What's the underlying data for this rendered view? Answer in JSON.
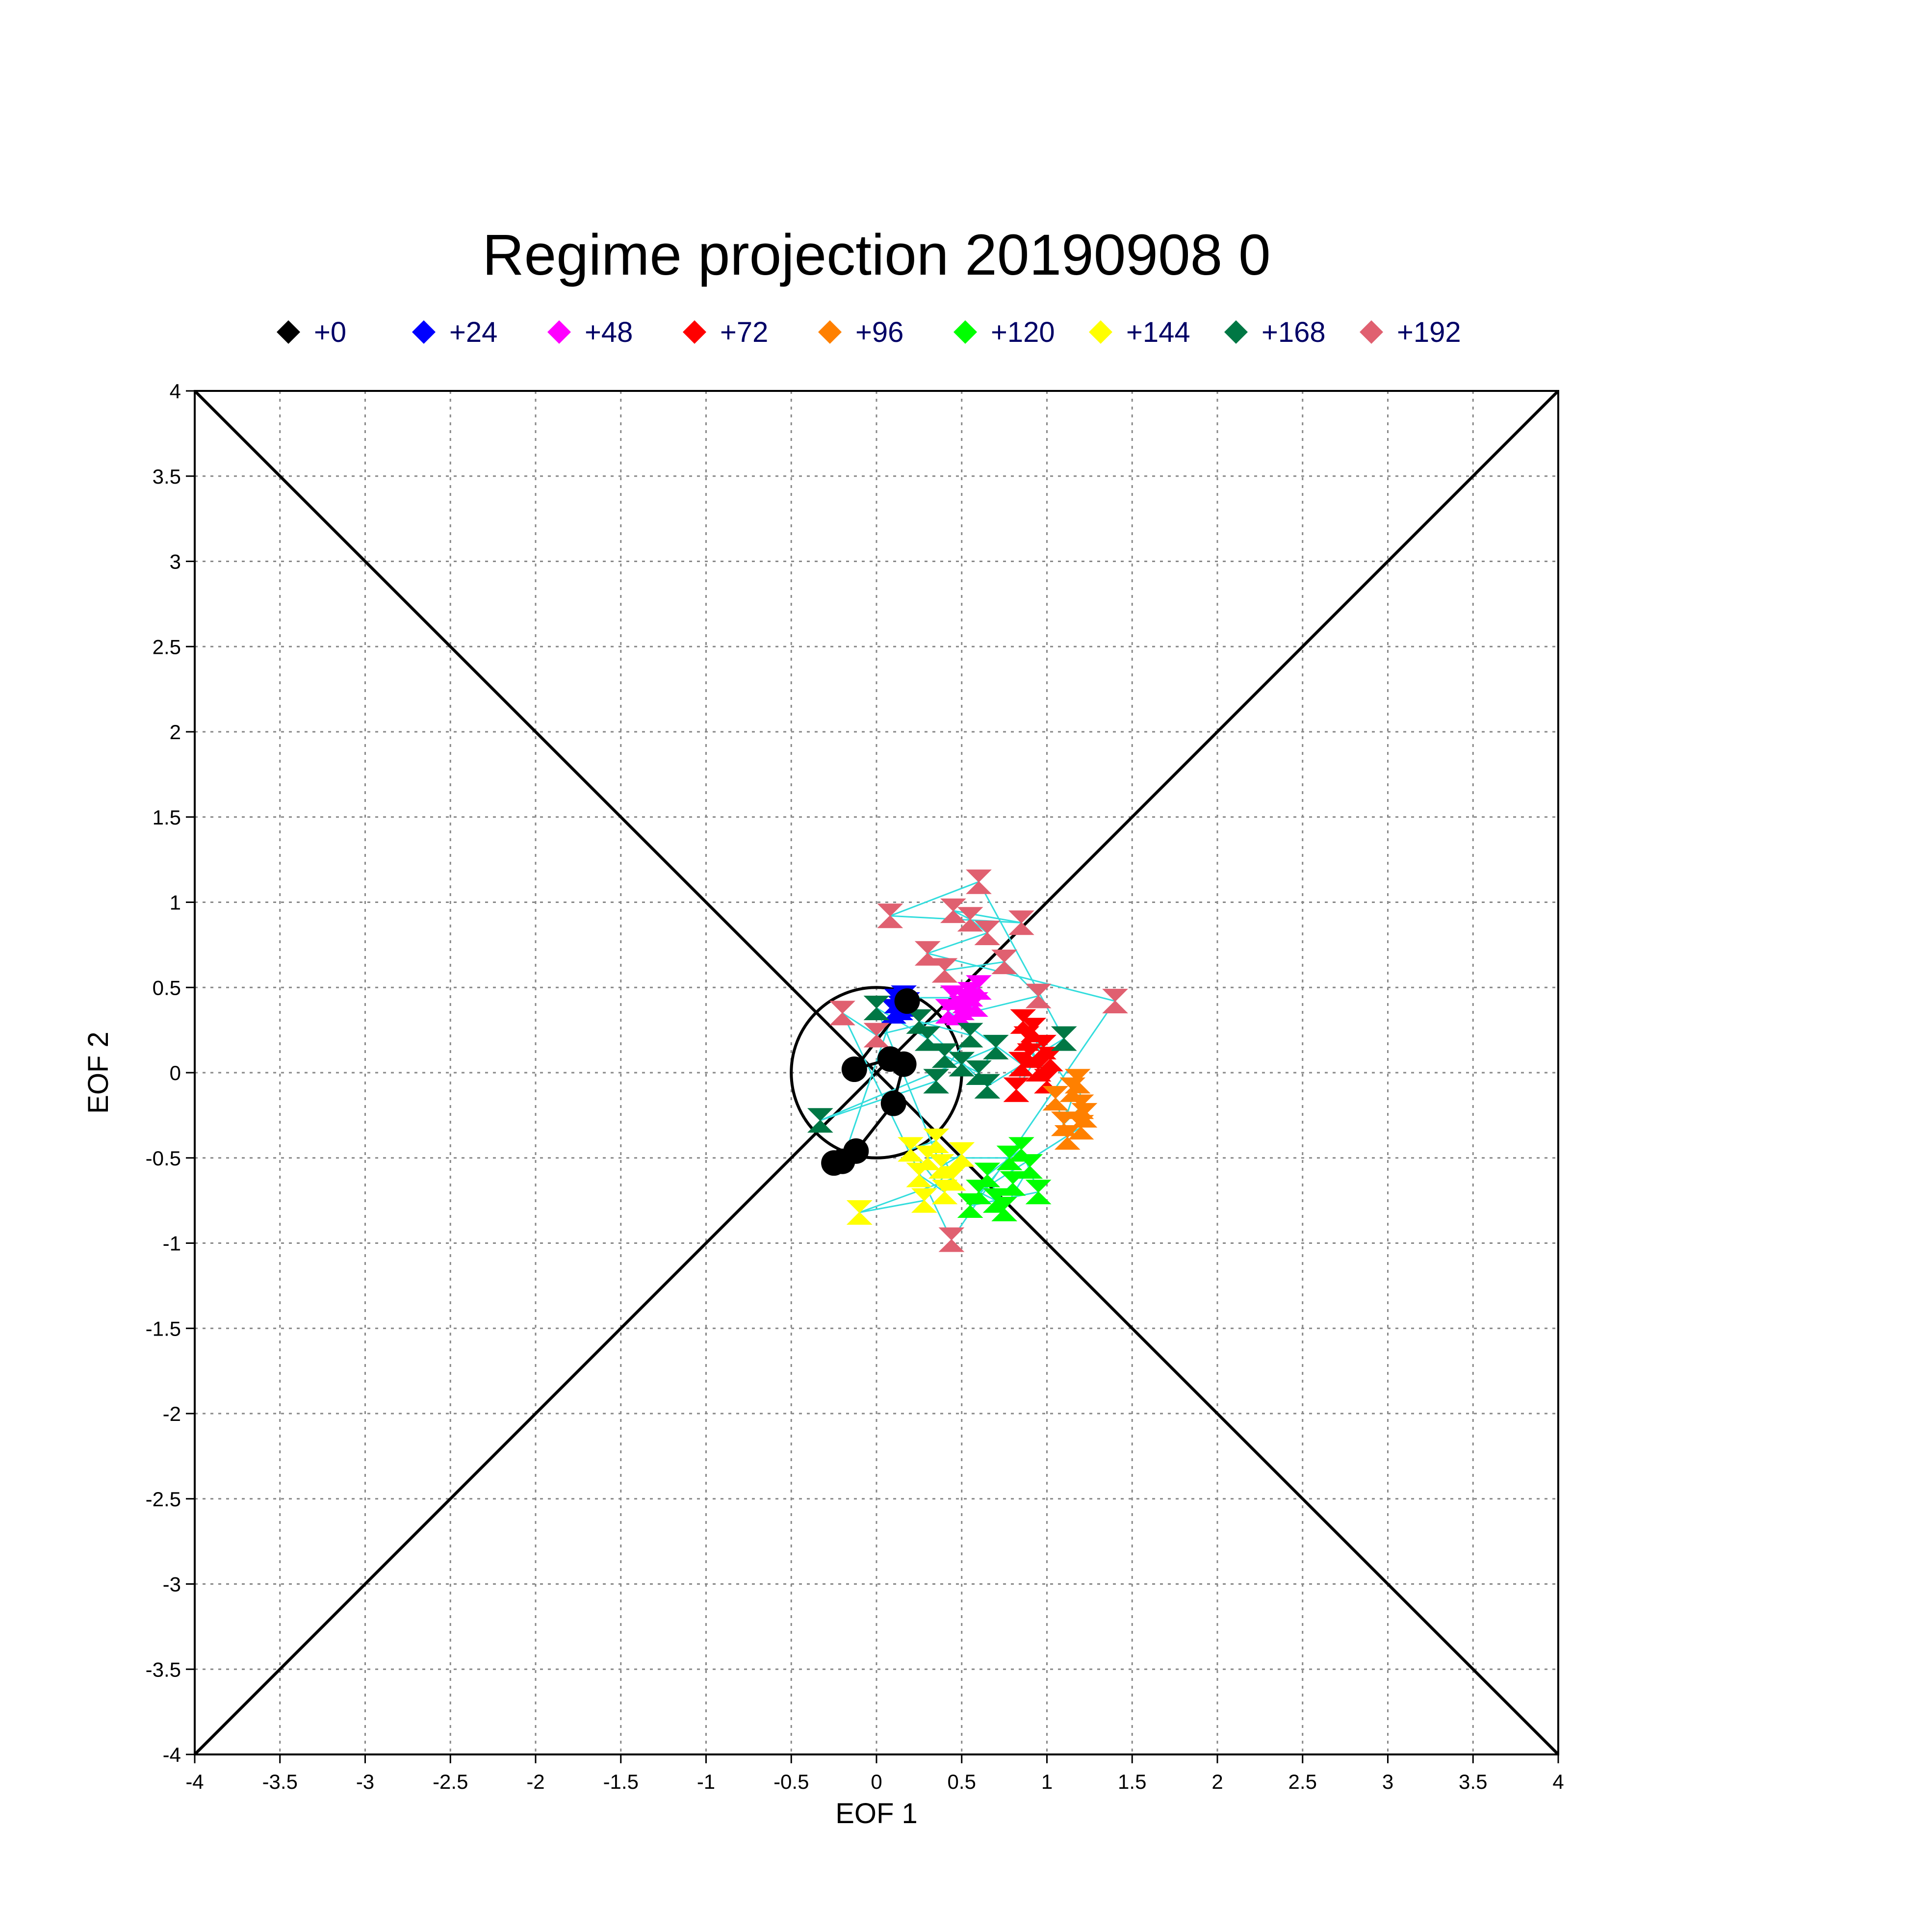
{
  "chart_data": {
    "type": "scatter",
    "title": "Regime projection  20190908 0",
    "xlabel": "EOF 1",
    "ylabel": "EOF 2",
    "xlim": [
      -4,
      4
    ],
    "ylim": [
      -4,
      4
    ],
    "xticks": [
      "-4",
      "-3.5",
      "-3",
      "-2.5",
      "-2",
      "-1.5",
      "-1",
      "-0.5",
      "0",
      "0.5",
      "1",
      "1.5",
      "2",
      "2.5",
      "3",
      "3.5",
      "4"
    ],
    "yticks": [
      "4",
      "3.5",
      "3",
      "2.5",
      "2",
      "1.5",
      "1",
      "0.5",
      "0",
      "-0.5",
      "-1",
      "-1.5",
      "-2",
      "-2.5",
      "-3",
      "-3.5",
      "-4"
    ],
    "grid": true,
    "legend_position": "top",
    "reference_circle": {
      "center": [
        0,
        0
      ],
      "radius": 0.5,
      "color": "#000000"
    },
    "reference_lines": [
      {
        "x": [
          -4,
          4
        ],
        "y": [
          4,
          -4
        ],
        "color": "#000000"
      },
      {
        "x": [
          -4,
          4
        ],
        "y": [
          -4,
          4
        ],
        "color": "#000000"
      }
    ],
    "trajectory_color": "#33dddd",
    "series": [
      {
        "name": "+0",
        "color": "#000000",
        "marker": "circle",
        "points": [
          [
            0.18,
            0.42
          ],
          [
            -0.13,
            0.02
          ],
          [
            0.08,
            0.08
          ],
          [
            0.16,
            0.05
          ],
          [
            0.1,
            -0.18
          ],
          [
            -0.12,
            -0.46
          ],
          [
            -0.25,
            -0.53
          ],
          [
            -0.2,
            -0.52
          ]
        ]
      },
      {
        "name": "+24",
        "color": "#0000ff",
        "marker": "hourglass",
        "points": [
          [
            0.12,
            0.42
          ],
          [
            0.14,
            0.38
          ],
          [
            0.18,
            0.4
          ],
          [
            0.1,
            0.36
          ],
          [
            0.16,
            0.44
          ]
        ]
      },
      {
        "name": "+48",
        "color": "#ff00ff",
        "marker": "hourglass",
        "points": [
          [
            0.45,
            0.44
          ],
          [
            0.5,
            0.38
          ],
          [
            0.55,
            0.46
          ],
          [
            0.52,
            0.42
          ],
          [
            0.48,
            0.35
          ],
          [
            0.58,
            0.4
          ],
          [
            0.6,
            0.5
          ],
          [
            0.42,
            0.36
          ]
        ]
      },
      {
        "name": "+72",
        "color": "#ff0000",
        "marker": "hourglass",
        "points": [
          [
            0.85,
            0.05
          ],
          [
            0.9,
            0.1
          ],
          [
            0.95,
            0.02
          ],
          [
            0.88,
            0.2
          ],
          [
            1.0,
            -0.05
          ],
          [
            0.92,
            0.25
          ],
          [
            0.82,
            -0.1
          ],
          [
            0.98,
            0.15
          ],
          [
            1.02,
            0.08
          ],
          [
            0.86,
            0.3
          ]
        ]
      },
      {
        "name": "+96",
        "color": "#ff8000",
        "marker": "hourglass",
        "points": [
          [
            1.15,
            -0.1
          ],
          [
            1.2,
            -0.2
          ],
          [
            1.1,
            -0.3
          ],
          [
            1.18,
            -0.05
          ],
          [
            1.22,
            -0.25
          ],
          [
            1.12,
            -0.38
          ],
          [
            1.05,
            -0.15
          ],
          [
            1.2,
            -0.32
          ]
        ]
      },
      {
        "name": "+120",
        "color": "#00ff00",
        "marker": "hourglass",
        "points": [
          [
            0.6,
            -0.7
          ],
          [
            0.7,
            -0.75
          ],
          [
            0.8,
            -0.65
          ],
          [
            0.9,
            -0.55
          ],
          [
            0.75,
            -0.8
          ],
          [
            0.65,
            -0.6
          ],
          [
            0.85,
            -0.45
          ],
          [
            0.95,
            -0.7
          ],
          [
            0.55,
            -0.78
          ],
          [
            0.78,
            -0.5
          ]
        ]
      },
      {
        "name": "+144",
        "color": "#ffff00",
        "marker": "hourglass",
        "points": [
          [
            0.3,
            -0.5
          ],
          [
            0.25,
            -0.6
          ],
          [
            0.4,
            -0.7
          ],
          [
            0.2,
            -0.45
          ],
          [
            0.35,
            -0.4
          ],
          [
            0.45,
            -0.62
          ],
          [
            -0.1,
            -0.82
          ],
          [
            0.28,
            -0.75
          ],
          [
            0.5,
            -0.48
          ],
          [
            0.38,
            -0.55
          ]
        ]
      },
      {
        "name": "+168",
        "color": "#007744",
        "marker": "hourglass",
        "points": [
          [
            0.0,
            0.38
          ],
          [
            0.3,
            0.2
          ],
          [
            0.4,
            0.1
          ],
          [
            0.5,
            0.05
          ],
          [
            0.6,
            0.0
          ],
          [
            0.7,
            0.15
          ],
          [
            -0.33,
            -0.28
          ],
          [
            0.35,
            -0.05
          ],
          [
            0.55,
            0.22
          ],
          [
            0.25,
            0.3
          ],
          [
            0.65,
            -0.08
          ],
          [
            1.1,
            0.2
          ]
        ]
      },
      {
        "name": "+192",
        "color": "#e06070",
        "marker": "hourglass",
        "points": [
          [
            0.6,
            1.12
          ],
          [
            0.08,
            0.92
          ],
          [
            0.85,
            0.88
          ],
          [
            0.45,
            0.95
          ],
          [
            0.55,
            0.9
          ],
          [
            0.65,
            0.82
          ],
          [
            0.3,
            0.7
          ],
          [
            1.4,
            0.42
          ],
          [
            0.44,
            -0.98
          ],
          [
            -0.2,
            0.35
          ],
          [
            0.0,
            0.22
          ],
          [
            0.95,
            0.45
          ],
          [
            0.75,
            0.65
          ],
          [
            0.4,
            0.6
          ]
        ]
      }
    ]
  }
}
